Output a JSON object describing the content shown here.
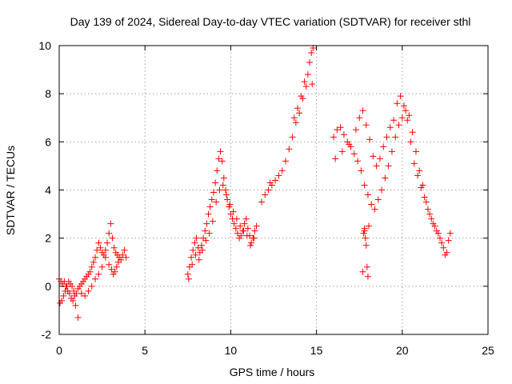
{
  "chart_data": {
    "type": "scatter",
    "title": "Day 139 of 2024, Sidereal Day-to-day VTEC variation (SDTVAR) for receiver sthl",
    "xlabel": "GPS time / hours",
    "ylabel": "SDTVAR / TECUs",
    "xlim": [
      0,
      25
    ],
    "ylim": [
      -2,
      10
    ],
    "xticks": [
      "0",
      "5",
      "10",
      "15",
      "20",
      "25"
    ],
    "yticks": [
      "-2",
      "0",
      "2",
      "4",
      "6",
      "8",
      "10"
    ],
    "grid": true,
    "marker": "+",
    "series": [
      {
        "name": "SDTVAR",
        "color": "#ff0000",
        "x": [
          0.0,
          0.1,
          0.2,
          0.3,
          0.4,
          0.5,
          0.6,
          0.7,
          0.8,
          0.9,
          1.0,
          1.1,
          1.2,
          1.3,
          1.4,
          1.5,
          1.6,
          1.7,
          1.8,
          1.9,
          2.0,
          2.1,
          2.2,
          2.3,
          2.4,
          2.5,
          2.6,
          2.7,
          2.8,
          2.9,
          3.0,
          3.1,
          3.2,
          3.3,
          3.4,
          3.5,
          3.6,
          3.7,
          3.8,
          3.9,
          0.05,
          0.15,
          0.25,
          0.35,
          0.45,
          0.55,
          0.65,
          0.75,
          0.85,
          0.95,
          1.1,
          1.3,
          1.5,
          1.7,
          1.9,
          2.1,
          2.3,
          2.5,
          2.7,
          2.9,
          3.05,
          3.15,
          3.25,
          3.35,
          3.45,
          7.5,
          7.6,
          7.7,
          7.8,
          7.9,
          8.0,
          8.1,
          8.2,
          8.3,
          8.4,
          8.5,
          8.6,
          8.7,
          8.8,
          8.9,
          9.0,
          9.1,
          9.2,
          9.3,
          9.4,
          9.5,
          9.6,
          9.7,
          9.8,
          9.9,
          10.0,
          10.1,
          10.2,
          10.3,
          10.4,
          10.5,
          10.6,
          10.7,
          10.8,
          10.9,
          11.0,
          11.1,
          11.2,
          11.3,
          11.4,
          11.5,
          7.55,
          7.75,
          7.95,
          8.15,
          8.35,
          8.55,
          8.75,
          8.95,
          9.15,
          9.35,
          9.55,
          9.75,
          9.95,
          10.15,
          10.35,
          10.55,
          10.75,
          10.95,
          11.15,
          11.35,
          11.8,
          12.0,
          12.2,
          12.4,
          12.6,
          12.8,
          13.0,
          13.2,
          13.4,
          13.6,
          13.8,
          14.0,
          14.2,
          14.4,
          14.5,
          14.6,
          14.7,
          14.8,
          12.3,
          13.7,
          13.9,
          14.1,
          14.3,
          14.75,
          16.0,
          16.2,
          16.4,
          16.6,
          16.8,
          17.0,
          17.2,
          17.4,
          17.6,
          17.8,
          18.0,
          18.2,
          18.4,
          18.6,
          18.8,
          19.0,
          19.2,
          19.4,
          19.6,
          19.8,
          20.0,
          20.2,
          20.4,
          20.6,
          20.8,
          21.0,
          21.2,
          21.4,
          21.6,
          21.8,
          22.0,
          22.2,
          22.4,
          22.6,
          22.8,
          16.1,
          16.5,
          16.9,
          17.3,
          17.5,
          17.7,
          17.9,
          18.1,
          18.3,
          18.5,
          18.7,
          18.9,
          19.1,
          19.3,
          19.5,
          19.7,
          19.9,
          20.1,
          20.3,
          20.5,
          20.7,
          20.9,
          21.1,
          21.3,
          21.5,
          21.7,
          21.9,
          22.1,
          22.3,
          22.5,
          22.7,
          17.8,
          17.85,
          17.9,
          17.95,
          18.0,
          17.7,
          17.75,
          17.8,
          18.05
        ],
        "y": [
          0.3,
          0.2,
          0.1,
          0.2,
          0.0,
          -0.2,
          -0.3,
          -0.5,
          -0.6,
          -0.4,
          -0.3,
          -0.1,
          0.0,
          0.1,
          0.2,
          0.3,
          0.4,
          0.5,
          0.6,
          0.8,
          1.0,
          1.2,
          1.5,
          1.8,
          1.6,
          1.4,
          1.3,
          1.5,
          1.8,
          2.2,
          2.6,
          2.0,
          1.6,
          1.4,
          1.3,
          1.2,
          1.1,
          1.3,
          1.5,
          1.2,
          -0.7,
          -0.6,
          -0.4,
          -0.2,
          0.0,
          0.2,
          0.1,
          0.0,
          -0.2,
          -0.8,
          -1.3,
          -0.3,
          -0.4,
          -0.2,
          0.0,
          0.3,
          0.5,
          0.8,
          1.2,
          0.9,
          0.7,
          0.5,
          0.6,
          0.8,
          1.0,
          0.5,
          0.8,
          1.2,
          1.5,
          1.8,
          2.0,
          1.6,
          1.4,
          1.7,
          2.0,
          2.3,
          2.6,
          3.0,
          3.3,
          3.6,
          3.9,
          4.3,
          4.8,
          5.3,
          5.6,
          5.2,
          4.5,
          4.0,
          3.6,
          3.3,
          3.0,
          2.8,
          2.6,
          2.4,
          2.2,
          2.0,
          2.1,
          2.3,
          2.6,
          2.8,
          2.4,
          2.1,
          1.8,
          2.0,
          2.3,
          2.5,
          0.3,
          0.9,
          1.3,
          1.1,
          1.5,
          1.9,
          2.2,
          2.7,
          3.5,
          4.0,
          4.2,
          3.8,
          3.4,
          3.1,
          2.8,
          2.5,
          2.3,
          2.1,
          1.7,
          2.0,
          3.5,
          3.8,
          4.0,
          4.2,
          4.4,
          4.6,
          4.8,
          5.2,
          5.7,
          6.2,
          6.8,
          7.2,
          7.8,
          8.3,
          8.8,
          9.3,
          9.7,
          9.9,
          4.3,
          7.0,
          7.4,
          7.9,
          8.5,
          8.4,
          6.2,
          6.5,
          6.6,
          6.3,
          6.0,
          5.8,
          5.5,
          5.2,
          4.8,
          4.2,
          3.8,
          3.4,
          3.2,
          3.6,
          4.0,
          4.5,
          5.0,
          5.6,
          6.2,
          6.7,
          7.0,
          7.3,
          7.1,
          6.4,
          5.6,
          4.8,
          4.2,
          3.5,
          3.0,
          2.6,
          2.3,
          2.0,
          1.6,
          1.4,
          2.2,
          5.3,
          5.6,
          5.9,
          6.5,
          7.0,
          7.3,
          6.7,
          6.1,
          5.4,
          5.0,
          5.3,
          5.8,
          6.2,
          6.6,
          6.9,
          7.6,
          7.9,
          7.5,
          6.9,
          6.0,
          5.1,
          4.6,
          4.1,
          3.7,
          3.2,
          2.8,
          2.5,
          2.2,
          1.8,
          1.3,
          1.9,
          2.3,
          2.0,
          1.7,
          0.8,
          0.4,
          0.6,
          2.2,
          2.4,
          2.5
        ]
      }
    ]
  }
}
